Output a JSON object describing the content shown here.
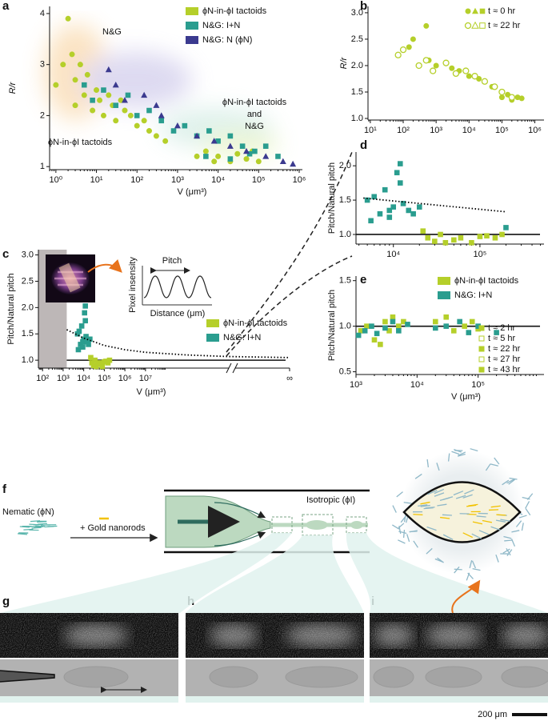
{
  "panel_labels": [
    "a",
    "b",
    "c",
    "d",
    "e",
    "f",
    "g",
    "h",
    "i"
  ],
  "chart_data": [
    {
      "type": "scatter",
      "xscale": "log",
      "x_label": "V (μm³)",
      "y_label": "R/r",
      "xlim": [
        0.7,
        1200000
      ],
      "ylim": [
        0.94,
        4.14
      ],
      "xticks": [
        {
          "value": 1,
          "label": "10⁰"
        },
        {
          "value": 10,
          "label": "10¹"
        },
        {
          "value": 100,
          "label": "10²"
        },
        {
          "value": 1000,
          "label": "10³"
        },
        {
          "value": 10000,
          "label": "10⁴"
        },
        {
          "value": 100000,
          "label": "10⁵"
        },
        {
          "value": 1000000,
          "label": "10⁶"
        }
      ],
      "yticks": [
        1,
        2,
        3,
        4
      ],
      "legend": "upper right",
      "annotations": [
        "N&G",
        "ϕN-in-ϕI tactoids",
        "ϕN-in-ϕI tactoids",
        "and",
        "N&G"
      ],
      "series": [
        {
          "name": "ϕN-in-ϕI tactoids",
          "color": "#b5cf2a",
          "marker": "circle",
          "x": [
            1,
            1.5,
            2,
            2.5,
            3,
            3,
            4,
            5,
            6,
            8,
            10,
            12,
            15,
            20,
            25,
            30,
            40,
            50,
            70,
            100,
            150,
            200,
            300,
            500,
            3000,
            5000,
            8000,
            10000,
            20000,
            30000,
            50000,
            70000,
            100000
          ],
          "values": [
            2.6,
            3.0,
            3.9,
            3.2,
            2.7,
            2.2,
            3.0,
            2.4,
            2.8,
            2.1,
            2.5,
            2.3,
            2.0,
            2.4,
            2.2,
            1.9,
            2.3,
            2.1,
            2.0,
            1.8,
            1.9,
            1.7,
            1.6,
            1.5,
            1.2,
            1.3,
            1.1,
            1.2,
            1.1,
            1.25,
            1.15,
            1.3,
            1.1
          ]
        },
        {
          "name": "N&G: I+N",
          "color": "#2a9d8f",
          "marker": "square",
          "x": [
            5,
            8,
            15,
            30,
            60,
            100,
            200,
            400,
            800,
            1500,
            3000,
            6000,
            10000,
            20000,
            40000,
            80000,
            150000,
            300000,
            5000,
            20000,
            60000
          ],
          "values": [
            2.6,
            2.3,
            2.5,
            2.2,
            2.4,
            2.0,
            2.1,
            1.9,
            1.7,
            1.8,
            1.6,
            1.7,
            1.5,
            1.6,
            1.4,
            1.3,
            1.4,
            1.2,
            1.2,
            1.15,
            1.25
          ]
        },
        {
          "name": "N&G: N (ϕN)",
          "color": "#3b3a8f",
          "marker": "triangle",
          "x": [
            20,
            50,
            150,
            400,
            1000,
            3000,
            8000,
            20000,
            50000,
            150000,
            400000,
            700000,
            30,
            300
          ],
          "values": [
            2.9,
            2.3,
            2.4,
            2.0,
            1.8,
            1.6,
            1.5,
            1.4,
            1.3,
            1.2,
            1.1,
            1.05,
            2.6,
            2.2
          ]
        }
      ]
    },
    {
      "type": "scatter",
      "xscale": "log",
      "y_label": "R/r",
      "xlim": [
        8.5,
        1900000
      ],
      "ylim": [
        0.97,
        3.12
      ],
      "xticks": [
        {
          "value": 10,
          "label": "10¹"
        },
        {
          "value": 100,
          "label": "10²"
        },
        {
          "value": 1000,
          "label": "10³"
        },
        {
          "value": 10000,
          "label": "10⁴"
        },
        {
          "value": 100000,
          "label": "10⁵"
        },
        {
          "value": 1000000,
          "label": "10⁶"
        }
      ],
      "yticks": [
        {
          "value": 1,
          "label": "1.0"
        },
        1.5,
        {
          "value": 2,
          "label": "2.0"
        },
        2.5,
        {
          "value": 3,
          "label": "3.0"
        }
      ],
      "legend": "upper right",
      "series": [
        {
          "name": "t ≈ 0 hr",
          "color": "#b5cf2a",
          "marker": "circle",
          "filled": true,
          "x": [
            150,
            200,
            500,
            600,
            1000,
            3000,
            5000,
            10000,
            20000,
            50000,
            100000,
            150000,
            200000,
            300000,
            400000
          ],
          "values": [
            2.35,
            2.5,
            2.75,
            2.1,
            2.0,
            1.95,
            1.9,
            1.8,
            1.75,
            1.6,
            1.4,
            1.45,
            1.35,
            1.4,
            1.38
          ]
        },
        {
          "name": "t ≈ 22 hr",
          "color": "#b5cf2a",
          "marker": "circle",
          "filled": false,
          "x": [
            70,
            100,
            300,
            500,
            800,
            2000,
            4000,
            8000,
            15000,
            30000,
            60000,
            100000,
            200000
          ],
          "values": [
            2.2,
            2.3,
            2.0,
            2.1,
            1.9,
            2.05,
            1.85,
            1.9,
            1.8,
            1.7,
            1.6,
            1.5,
            1.4
          ]
        }
      ]
    },
    {
      "type": "scatter",
      "xscale": "log",
      "x_label": "V (μm³)",
      "y_label": "Pitch/Natural pitch",
      "xlim": [
        63,
        100000000000000
      ],
      "ylim": [
        0.85,
        3.1
      ],
      "xticks": [
        {
          "value": 100,
          "label": "10²"
        },
        {
          "value": 1000,
          "label": "10³"
        },
        {
          "value": 10000,
          "label": "10⁴"
        },
        {
          "value": 100000,
          "label": "10⁵"
        },
        {
          "value": 1000000,
          "label": "10⁶"
        },
        {
          "value": 10000000,
          "label": "10⁷"
        },
        {
          "value": 100000000000000,
          "label": "∞"
        }
      ],
      "yticks": [
        {
          "value": 1,
          "label": "1.0"
        },
        1.5,
        {
          "value": 2,
          "label": "2.0"
        },
        2.5,
        {
          "value": 3,
          "label": "3.0"
        }
      ],
      "legend": "center right",
      "shaded_xrange": [
        63,
        1500
      ],
      "hline": 1,
      "inset": {
        "title": "Pitch",
        "y_label": "Pixel insensity",
        "x_label": "Distance (μm)"
      },
      "series": [
        {
          "name": "ϕN-in-ϕI tactoids",
          "color": "#b5cf2a",
          "marker": "square",
          "x": [
            22000,
            25000,
            30000,
            35000,
            40000,
            50000,
            60000,
            80000,
            100000,
            120000,
            150000,
            180000
          ],
          "values": [
            1.05,
            0.95,
            0.9,
            1.0,
            0.88,
            0.92,
            0.95,
            0.88,
            0.97,
            0.98,
            0.95,
            1.0
          ]
        },
        {
          "name": "N&G: I+N",
          "color": "#2a9d8f",
          "marker": "square",
          "x": [
            5000,
            5500,
            6000,
            7000,
            8000,
            9000,
            10000,
            11000,
            12000,
            13000,
            15000,
            17000,
            20000,
            12000,
            9000
          ],
          "values": [
            1.5,
            1.2,
            1.55,
            1.3,
            1.65,
            1.35,
            1.4,
            1.9,
            2.03,
            1.45,
            1.35,
            1.3,
            1.4,
            1.75,
            1.25
          ]
        },
        {
          "color": "#000000",
          "line": "dotted",
          "x": [
            1500,
            10000,
            100000,
            1000000,
            10000000,
            1000000000,
            100000000000,
            100000000000000
          ],
          "values": [
            1.58,
            1.42,
            1.28,
            1.2,
            1.15,
            1.1,
            1.07,
            1.05
          ]
        }
      ]
    },
    {
      "type": "scatter",
      "xscale": "log",
      "y_label": "Pitch/Natural pitch",
      "xlim": [
        3700,
        550000
      ],
      "ylim": [
        0.86,
        2.2
      ],
      "xticks": [
        {
          "value": 10000,
          "label": "10⁴"
        },
        {
          "value": 100000,
          "label": "10⁵"
        }
      ],
      "yticks": [
        {
          "value": 1,
          "label": "1.0"
        },
        1.5,
        {
          "value": 2,
          "label": "2.0"
        }
      ],
      "hline": 1,
      "series": [
        {
          "color": "#b5cf2a",
          "marker": "square",
          "x": [
            22000,
            25000,
            30000,
            35000,
            40000,
            50000,
            60000,
            80000,
            100000,
            120000,
            150000,
            180000
          ],
          "values": [
            1.05,
            0.95,
            0.9,
            1.0,
            0.88,
            0.92,
            0.95,
            0.88,
            0.97,
            0.98,
            0.95,
            1.0
          ]
        },
        {
          "color": "#2a9d8f",
          "marker": "square",
          "x": [
            5000,
            5500,
            6000,
            7000,
            8000,
            9000,
            10000,
            11000,
            12000,
            13000,
            15000,
            17000,
            20000,
            12000,
            9000,
            200000
          ],
          "values": [
            1.5,
            1.2,
            1.55,
            1.3,
            1.65,
            1.35,
            1.4,
            1.9,
            2.03,
            1.45,
            1.35,
            1.3,
            1.4,
            1.75,
            1.25,
            1.1
          ]
        },
        {
          "color": "#000000",
          "line": "dotted",
          "x": [
            4500,
            200000
          ],
          "values": [
            1.53,
            1.33
          ]
        }
      ]
    },
    {
      "type": "scatter",
      "xscale": "log",
      "x_label": "V (μm³)",
      "y_label": "Pitch/Natural pitch",
      "xlim": [
        1000,
        1200000
      ],
      "ylim": [
        0.47,
        1.55
      ],
      "xticks": [
        {
          "value": 1000,
          "label": "10³"
        },
        {
          "value": 10000,
          "label": "10⁴"
        },
        {
          "value": 100000,
          "label": "10⁵"
        }
      ],
      "yticks": [
        0.5,
        {
          "value": 1,
          "label": "1.0"
        },
        1.5
      ],
      "hline": 1,
      "legend": "upper right",
      "time_legend": [
        "t ≈ 2 hr",
        "t ≈ 5 hr",
        "t ≈ 22 hr",
        "t ≈ 27 hr",
        "t ≈ 43 hr"
      ],
      "series": [
        {
          "name": "ϕN-in-ϕI tactoids",
          "color": "#b5cf2a",
          "marker": "square",
          "x": [
            1200,
            1500,
            2000,
            2500,
            3000,
            3500,
            4000,
            5000,
            6000,
            20000,
            30000,
            40000,
            60000,
            80000,
            100000
          ],
          "values": [
            0.95,
            1.0,
            0.85,
            0.8,
            1.05,
            0.95,
            1.1,
            1.0,
            1.05,
            1.05,
            1.1,
            0.95,
            1.0,
            1.05,
            0.97
          ]
        },
        {
          "name": "N&G: I+N",
          "color": "#2a9d8f",
          "marker": "square",
          "x": [
            1100,
            1400,
            1800,
            2200,
            3000,
            4000,
            5000,
            7000,
            20000,
            30000,
            50000,
            70000,
            100000,
            200000
          ],
          "values": [
            0.9,
            0.95,
            1.0,
            0.92,
            0.98,
            1.05,
            0.95,
            1.02,
            0.98,
            1.0,
            1.05,
            0.93,
            1.0,
            0.93
          ]
        }
      ]
    }
  ],
  "diagram": {
    "nematic": "Nematic (ϕN)",
    "additive": "+ Gold nanorods",
    "isotropic": "Isotropic (ϕI)"
  },
  "scale_bar": "200 μm"
}
